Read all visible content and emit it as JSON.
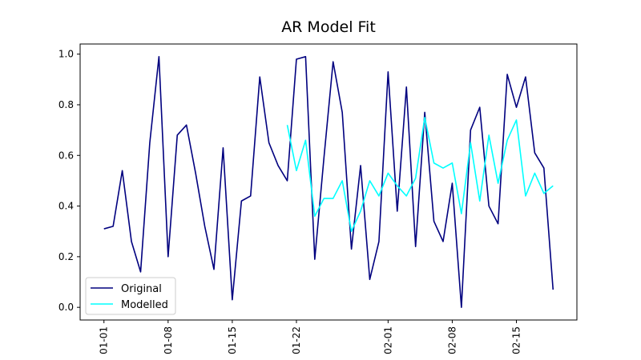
{
  "chart_data": {
    "type": "line",
    "title": "AR Model Fit",
    "xlabel": "",
    "ylabel": "",
    "x_tick_labels": [
      "01-01",
      "01-08",
      "01-15",
      "01-22",
      "02-01",
      "02-08",
      "02-15"
    ],
    "x_tick_days": [
      1,
      8,
      15,
      22,
      32,
      39,
      46
    ],
    "x_range_days": [
      -1.6,
      52.6
    ],
    "y_ticks": [
      0.0,
      0.2,
      0.4,
      0.6,
      0.8,
      1.0
    ],
    "y_tick_labels": [
      "0.0",
      "0.2",
      "0.4",
      "0.6",
      "0.8",
      "1.0"
    ],
    "ylim": [
      -0.05,
      1.04
    ],
    "grid": false,
    "legend_position": "lower-left",
    "series": [
      {
        "name": "Original",
        "color": "#00007f",
        "start_day": 1,
        "values": [
          0.31,
          0.32,
          0.54,
          0.26,
          0.14,
          0.65,
          0.99,
          0.2,
          0.68,
          0.72,
          0.53,
          0.32,
          0.15,
          0.63,
          0.03,
          0.42,
          0.44,
          0.91,
          0.65,
          0.56,
          0.5,
          0.98,
          0.99,
          0.19,
          0.59,
          0.97,
          0.77,
          0.23,
          0.56,
          0.11,
          0.26,
          0.93,
          0.38,
          0.87,
          0.24,
          0.77,
          0.34,
          0.26,
          0.49,
          0.0,
          0.7,
          0.79,
          0.4,
          0.33,
          0.92,
          0.79,
          0.91,
          0.61,
          0.55,
          0.07
        ]
      },
      {
        "name": "Modelled",
        "color": "#00ffff",
        "start_day": 21,
        "values": [
          0.72,
          0.54,
          0.66,
          0.36,
          0.43,
          0.43,
          0.5,
          0.3,
          0.38,
          0.5,
          0.44,
          0.53,
          0.48,
          0.44,
          0.51,
          0.75,
          0.57,
          0.55,
          0.57,
          0.37,
          0.65,
          0.42,
          0.68,
          0.49,
          0.66,
          0.74,
          0.44,
          0.53,
          0.45,
          0.48
        ]
      }
    ]
  }
}
